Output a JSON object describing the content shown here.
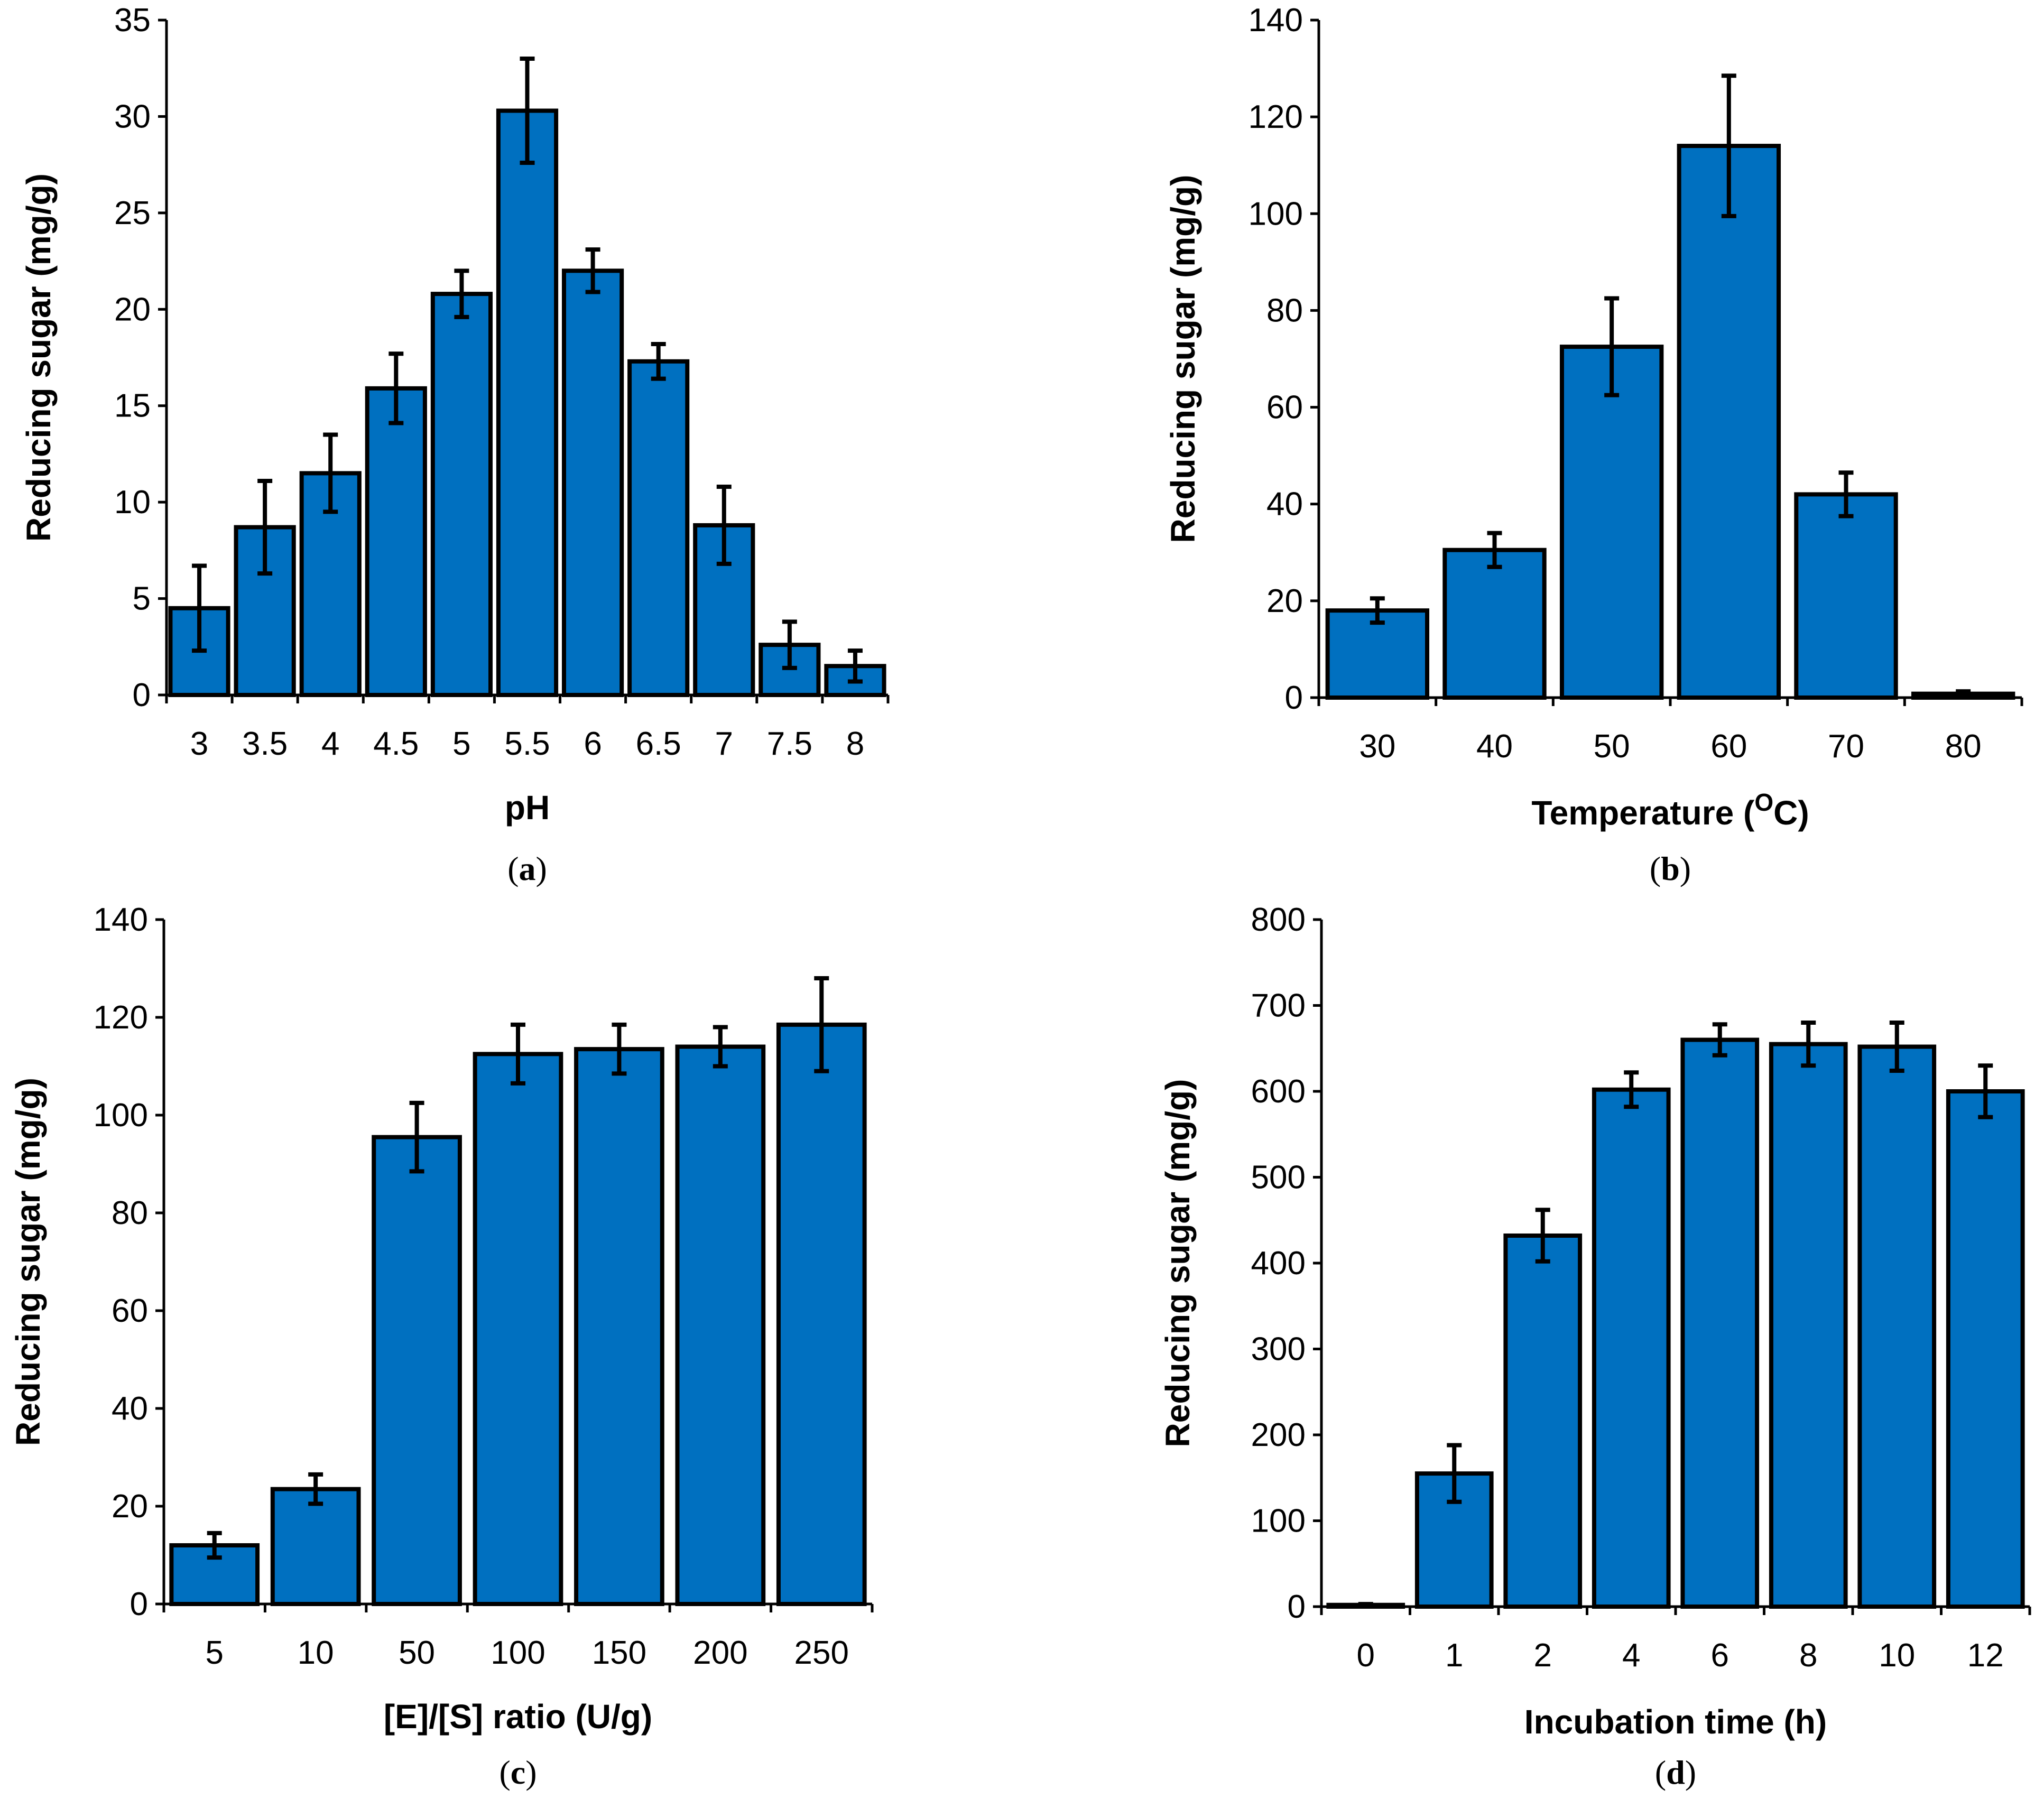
{
  "chart_data": [
    {
      "type": "bar",
      "panel_label": "a",
      "categories": [
        "3",
        "3.5",
        "4",
        "4.5",
        "5",
        "5.5",
        "6",
        "6.5",
        "7",
        "7.5",
        "8"
      ],
      "values": [
        4.5,
        8.7,
        11.5,
        15.9,
        20.8,
        30.3,
        22.0,
        17.3,
        8.8,
        2.6,
        1.5
      ],
      "errors": [
        2.2,
        2.4,
        2.0,
        1.8,
        1.2,
        2.7,
        1.1,
        0.9,
        2.0,
        1.2,
        0.8
      ],
      "xlabel": "pH",
      "ylabel": "Reducing sugar (mg/g)",
      "ylim": [
        0,
        35
      ],
      "yticks": [
        0,
        5,
        10,
        15,
        20,
        25,
        30,
        35
      ]
    },
    {
      "type": "bar",
      "panel_label": "b",
      "categories": [
        "30",
        "40",
        "50",
        "60",
        "70",
        "80"
      ],
      "values": [
        18,
        30.5,
        72.5,
        114,
        42,
        0.8
      ],
      "errors": [
        2.5,
        3.5,
        10,
        14.5,
        4.5,
        0.5
      ],
      "xlabel_main": "Temperature (",
      "xlabel_sup": "O",
      "xlabel_end": "C)",
      "ylabel": "Reducing sugar (mg/g)",
      "ylim": [
        0,
        140
      ],
      "yticks": [
        0,
        20,
        40,
        60,
        80,
        100,
        120,
        140
      ]
    },
    {
      "type": "bar",
      "panel_label": "c",
      "categories": [
        "5",
        "10",
        "50",
        "100",
        "150",
        "200",
        "250"
      ],
      "values": [
        12,
        23.5,
        95.5,
        112.5,
        113.5,
        114,
        118.5
      ],
      "errors": [
        2.5,
        3,
        7,
        6,
        5,
        4,
        9.5
      ],
      "xlabel": "[E]/[S] ratio (U/g)",
      "ylabel": "Reducing sugar (mg/g)",
      "ylim": [
        0,
        140
      ],
      "yticks": [
        0,
        20,
        40,
        60,
        80,
        100,
        120,
        140
      ]
    },
    {
      "type": "bar",
      "panel_label": "d",
      "categories": [
        "0",
        "1",
        "2",
        "4",
        "6",
        "8",
        "10",
        "12"
      ],
      "values": [
        2,
        155,
        432,
        602,
        660,
        655,
        652,
        600
      ],
      "errors": [
        1,
        33,
        30,
        20,
        18,
        25,
        28,
        30
      ],
      "xlabel": "Incubation time (h)",
      "ylabel": "Reducing sugar (mg/g)",
      "ylim": [
        0,
        800
      ],
      "yticks": [
        0,
        100,
        200,
        300,
        400,
        500,
        600,
        700,
        800
      ]
    }
  ]
}
